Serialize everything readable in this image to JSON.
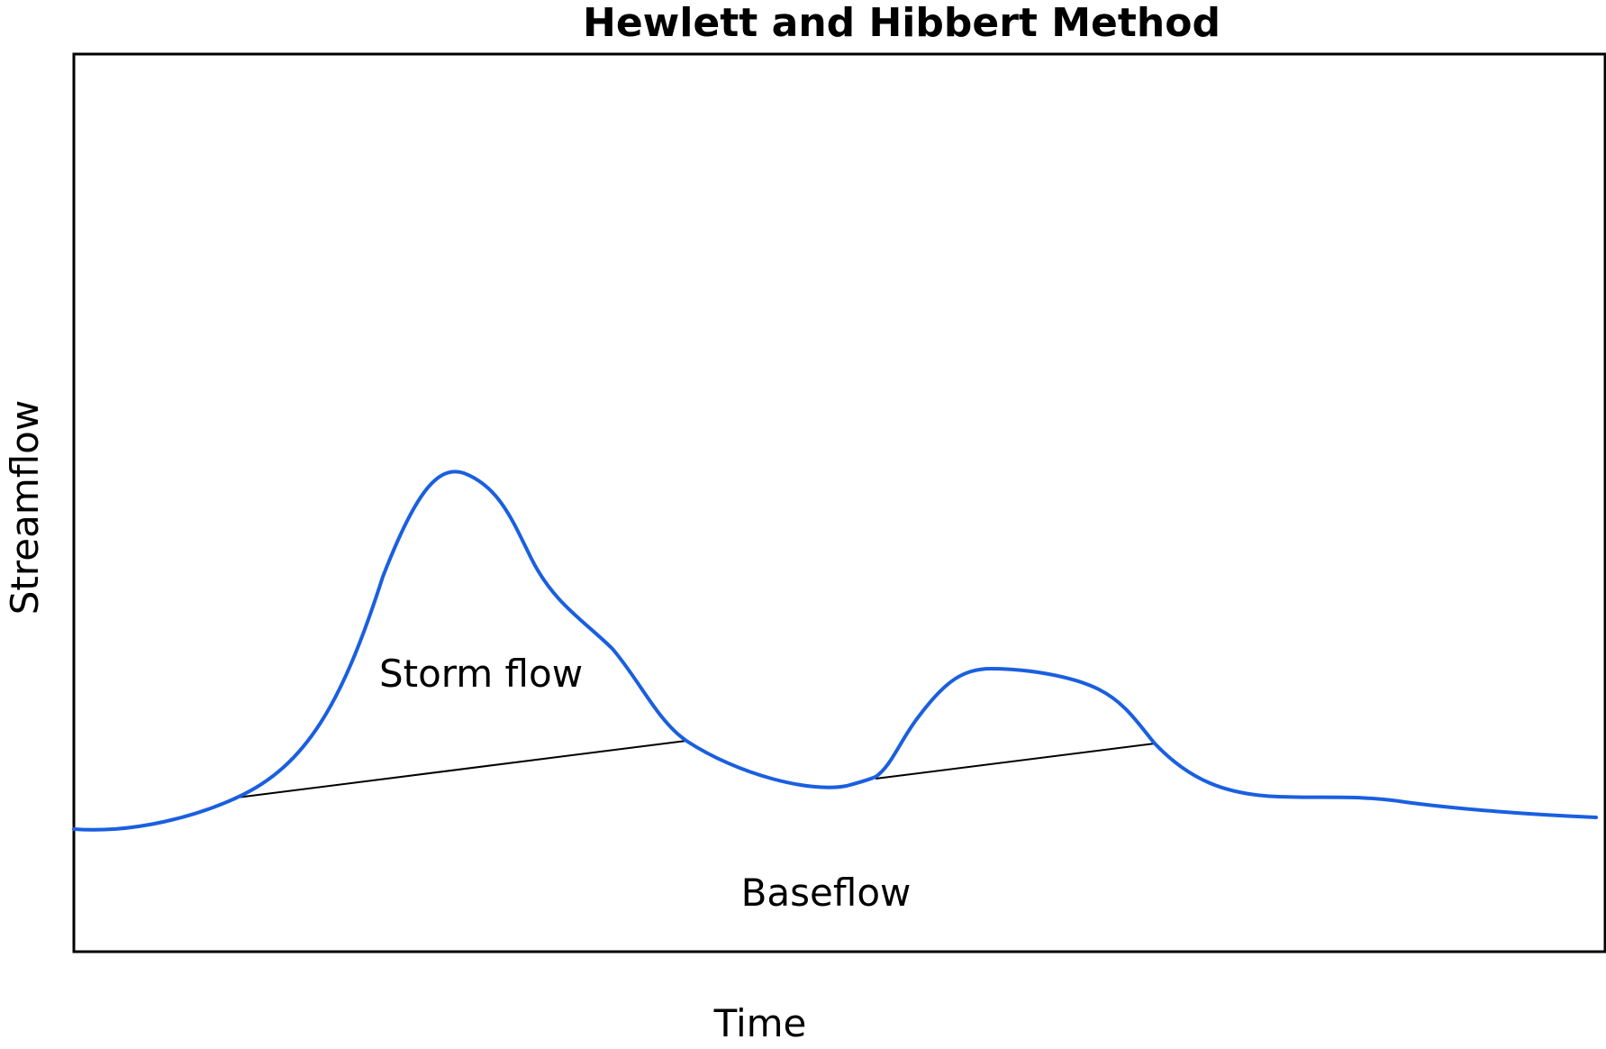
{
  "title": "Hewlett and Hibbert Method",
  "axes": {
    "x_label": "Time",
    "y_label": "Streamflow"
  },
  "regions": {
    "storm_flow_label": "Storm flow",
    "baseflow_label": "Baseflow"
  },
  "colors": {
    "hydrograph": "#1a5fe0",
    "separation_line": "#000000",
    "frame": "#000000",
    "background": "#ffffff"
  }
}
